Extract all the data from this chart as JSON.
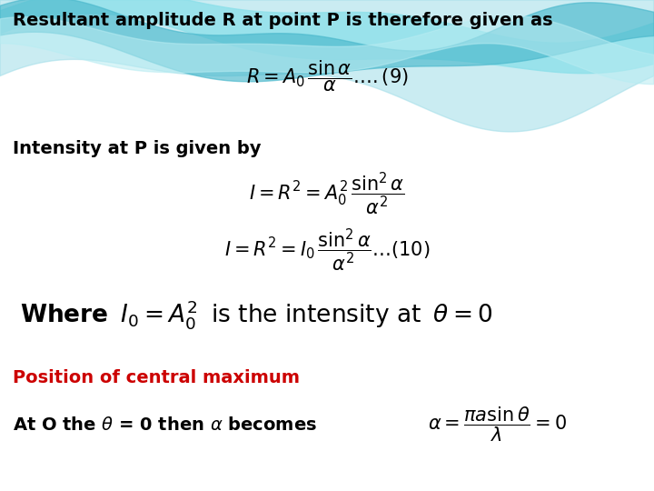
{
  "background_color": "#ffffff",
  "title_text": "Resultant amplitude R at point P is therefore given as",
  "title_color": "#000000",
  "title_fontsize": 14,
  "label_intensity": "Intensity at P is given by",
  "label_position": "Position of central maximum",
  "label_position_color": "#cc0000",
  "text_color": "#000000",
  "wave_color1": "#8de0ea",
  "wave_color2": "#4ab8cc",
  "wave_color3": "#b8ecf2"
}
